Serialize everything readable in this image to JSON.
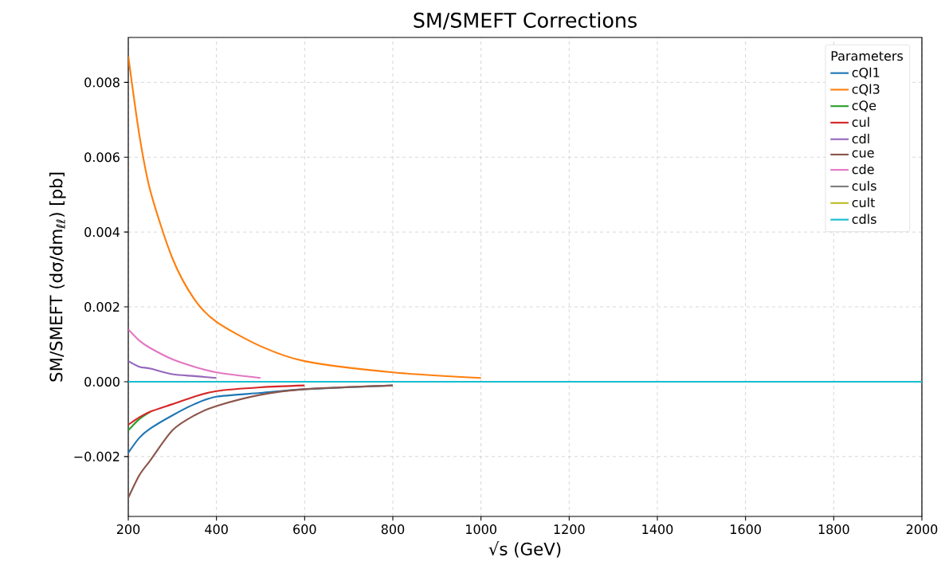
{
  "chart_data": {
    "type": "line",
    "title": "SM/SMEFT Corrections",
    "xlabel": "√s (GeV)",
    "ylabel": "SM/SMEFT (dσ/dm$_{ℓℓ}$) [pb]",
    "legend_title": "Parameters",
    "x": [
      200,
      225,
      250,
      300,
      350,
      400,
      500,
      600,
      800,
      1000,
      1200,
      1400,
      1600,
      2000
    ],
    "series": [
      {
        "name": "cQl1",
        "color": "#1f77b4",
        "values": [
          -0.0019,
          -0.0015,
          -0.00125,
          -0.0009,
          -0.0006,
          -0.0004,
          -0.0003,
          -0.0002,
          -0.0001,
          null,
          null,
          null,
          null,
          null
        ]
      },
      {
        "name": "cQl3",
        "color": "#ff7f0e",
        "values": [
          0.0087,
          0.0066,
          0.0051,
          0.0033,
          0.0022,
          0.0016,
          0.00095,
          0.00055,
          0.00025,
          0.0001,
          null,
          null,
          null,
          null
        ]
      },
      {
        "name": "cQe",
        "color": "#2ca02c",
        "values": [
          -0.0013,
          -0.001,
          -0.0008,
          null,
          null,
          null,
          null,
          null,
          null,
          null,
          null,
          null,
          null,
          null
        ]
      },
      {
        "name": "cul",
        "color": "#d62728",
        "values": [
          -0.00115,
          -0.00095,
          -0.0008,
          -0.0006,
          -0.0004,
          -0.00025,
          -0.00015,
          -0.0001,
          null,
          null,
          null,
          null,
          null,
          null
        ]
      },
      {
        "name": "cdl",
        "color": "#9467bd",
        "values": [
          0.00055,
          0.0004,
          0.00035,
          0.0002,
          0.00015,
          0.0001,
          null,
          null,
          null,
          null,
          null,
          null,
          null,
          null
        ]
      },
      {
        "name": "cue",
        "color": "#8c564b",
        "values": [
          -0.0031,
          -0.0025,
          -0.0021,
          -0.0013,
          -0.0009,
          -0.00065,
          -0.00035,
          -0.0002,
          -0.0001,
          null,
          null,
          null,
          null,
          null
        ]
      },
      {
        "name": "cde",
        "color": "#e377c2",
        "values": [
          0.0014,
          0.0011,
          0.0009,
          0.0006,
          0.0004,
          0.00025,
          0.0001,
          null,
          null,
          null,
          null,
          null,
          null,
          null
        ]
      },
      {
        "name": "culs",
        "color": "#7f7f7f",
        "values": [
          null,
          null,
          null,
          null,
          null,
          null,
          null,
          null,
          null,
          null,
          null,
          null,
          null,
          null
        ]
      },
      {
        "name": "cult",
        "color": "#bcbd22",
        "values": [
          null,
          null,
          null,
          null,
          null,
          null,
          null,
          null,
          null,
          null,
          null,
          null,
          null,
          null
        ]
      },
      {
        "name": "cdls",
        "color": "#17becf",
        "values": [
          0,
          0,
          0,
          0,
          0,
          0,
          0,
          0,
          0,
          0,
          0,
          0,
          0,
          0
        ]
      }
    ],
    "xlim": [
      200,
      2000
    ],
    "ylim": [
      -0.0036,
      0.0092
    ],
    "xticks": [
      200,
      400,
      600,
      800,
      1000,
      1200,
      1400,
      1600,
      1800,
      2000
    ],
    "yticks": [
      {
        "value": -0.002,
        "label": "−0.002"
      },
      {
        "value": 0,
        "label": "0.000"
      },
      {
        "value": 0.002,
        "label": "0.002"
      },
      {
        "value": 0.004,
        "label": "0.004"
      },
      {
        "value": 0.006,
        "label": "0.006"
      },
      {
        "value": 0.008,
        "label": "0.008"
      }
    ],
    "grid": true,
    "legend": "top right"
  }
}
